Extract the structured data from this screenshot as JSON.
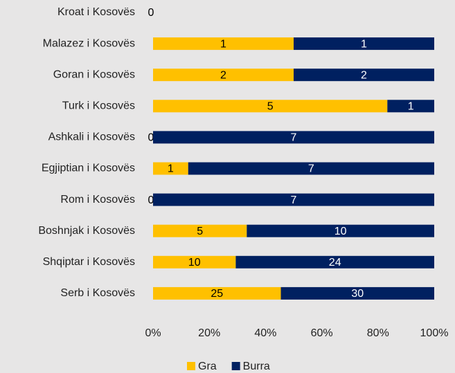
{
  "chart_data": {
    "type": "bar",
    "orientation": "horizontal",
    "stacked": "percent",
    "categories": [
      "Kroat i Kosovës",
      "Malazez i Kosovës",
      "Goran i Kosovës",
      "Turk i Kosovës",
      "Ashkali i Kosovës",
      "Egjiptian i Kosovës",
      "Rom i Kosovës",
      "Boshnjak i Kosovës",
      "Shqiptar i Kosovës",
      "Serb i Kosovës"
    ],
    "series": [
      {
        "name": "Gra",
        "color": "#ffc000",
        "label_color": "#000000",
        "values": [
          0,
          1,
          2,
          5,
          0,
          1,
          0,
          5,
          10,
          25
        ]
      },
      {
        "name": "Burra",
        "color": "#002060",
        "label_color": "#ffffff",
        "values": [
          null,
          1,
          2,
          1,
          7,
          7,
          7,
          10,
          24,
          30
        ]
      }
    ],
    "xlim": [
      0,
      100
    ],
    "xticks": [
      {
        "value": 0,
        "label": "0%"
      },
      {
        "value": 20,
        "label": "20%"
      },
      {
        "value": 40,
        "label": "40%"
      },
      {
        "value": 60,
        "label": "60%"
      },
      {
        "value": 80,
        "label": "80%"
      },
      {
        "value": 100,
        "label": "100%"
      }
    ],
    "legend": "bottom"
  }
}
